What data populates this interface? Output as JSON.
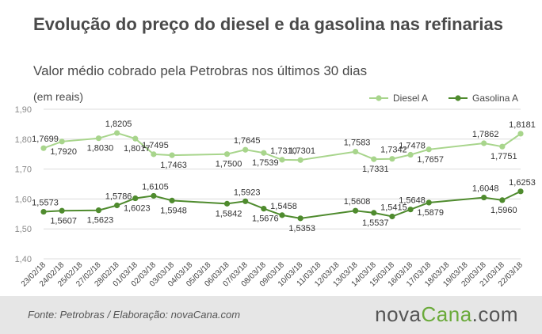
{
  "header": {
    "title": "Evolução do preço do diesel e da gasolina nas refinarias",
    "subtitle": "Valor médio cobrado pela Petrobras nos últimos 30 dias"
  },
  "footer": {
    "source": "Fonte:  Petrobras  / Elaboração:  novaCana.com",
    "brand_part1": "nova",
    "brand_part2": "Cana",
    "brand_part3": ".com"
  },
  "colors": {
    "diesel": "#a8d58c",
    "gasolina": "#4f8b2e",
    "grid": "#dcdcdc",
    "text": "#4a4a4a",
    "brand_accent": "#6aaa3a"
  },
  "chart_data": {
    "type": "line",
    "unit_label": "(em reais)",
    "ylim": [
      1.4,
      1.9
    ],
    "yticks": [
      "1,90",
      "1,80",
      "1,70",
      "1,60",
      "1,50",
      "1,40"
    ],
    "grid": true,
    "legend_position": "top-right",
    "x": [
      "23/02/18",
      "24/02/18",
      "25/02/18",
      "27/02/18",
      "28/02/18",
      "01/03/18",
      "02/03/18",
      "03/03/18",
      "04/03/18",
      "05/03/18",
      "06/03/18",
      "07/03/18",
      "08/03/18",
      "09/03/18",
      "10/03/18",
      "11/03/18",
      "12/03/18",
      "13/03/18",
      "14/03/18",
      "15/03/18",
      "16/03/18",
      "17/03/18",
      "18/03/18",
      "19/03/18",
      "20/03/18",
      "21/03/18",
      "22/03/18"
    ],
    "series": [
      {
        "name": "Diesel A",
        "points": [
          {
            "x": "23/02/18",
            "value": 1.7699,
            "label": "1,7699",
            "pos": "above"
          },
          {
            "x": "24/02/18",
            "value": 1.792,
            "label": "1,7920",
            "pos": "below"
          },
          {
            "x": "27/02/18",
            "value": 1.803,
            "label": "1,8030",
            "pos": "below"
          },
          {
            "x": "28/02/18",
            "value": 1.8205,
            "label": "1,8205",
            "pos": "above"
          },
          {
            "x": "01/03/18",
            "value": 1.8017,
            "label": "1,8017",
            "pos": "below"
          },
          {
            "x": "02/03/18",
            "value": 1.7495,
            "label": "1,7495",
            "pos": "above"
          },
          {
            "x": "03/03/18",
            "value": 1.7463,
            "label": "1,7463",
            "pos": "below"
          },
          {
            "x": "06/03/18",
            "value": 1.75,
            "label": "1,7500",
            "pos": "below"
          },
          {
            "x": "07/03/18",
            "value": 1.7645,
            "label": "1,7645",
            "pos": "above"
          },
          {
            "x": "08/03/18",
            "value": 1.7539,
            "label": "1,7539",
            "pos": "below"
          },
          {
            "x": "09/03/18",
            "value": 1.731,
            "label": "1,7310",
            "pos": "above"
          },
          {
            "x": "10/03/18",
            "value": 1.7301,
            "label": "1,7301",
            "pos": "above"
          },
          {
            "x": "13/03/18",
            "value": 1.7583,
            "label": "1,7583",
            "pos": "above"
          },
          {
            "x": "14/03/18",
            "value": 1.7331,
            "label": "1,7331",
            "pos": "below"
          },
          {
            "x": "15/03/18",
            "value": 1.7342,
            "label": "1,7342",
            "pos": "above"
          },
          {
            "x": "16/03/18",
            "value": 1.7478,
            "label": "1,7478",
            "pos": "above"
          },
          {
            "x": "17/03/18",
            "value": 1.7657,
            "label": "1,7657",
            "pos": "below"
          },
          {
            "x": "20/03/18",
            "value": 1.7862,
            "label": "1,7862",
            "pos": "above"
          },
          {
            "x": "21/03/18",
            "value": 1.7751,
            "label": "1,7751",
            "pos": "below"
          },
          {
            "x": "22/03/18",
            "value": 1.8181,
            "label": "1,8181",
            "pos": "above"
          }
        ]
      },
      {
        "name": "Gasolina A",
        "points": [
          {
            "x": "23/02/18",
            "value": 1.5573,
            "label": "1,5573",
            "pos": "above"
          },
          {
            "x": "24/02/18",
            "value": 1.5607,
            "label": "1,5607",
            "pos": "below"
          },
          {
            "x": "27/02/18",
            "value": 1.5623,
            "label": "1,5623",
            "pos": "below"
          },
          {
            "x": "28/02/18",
            "value": 1.5786,
            "label": "1,5786",
            "pos": "above"
          },
          {
            "x": "01/03/18",
            "value": 1.6023,
            "label": "1,6023",
            "pos": "below"
          },
          {
            "x": "02/03/18",
            "value": 1.6105,
            "label": "1,6105",
            "pos": "above"
          },
          {
            "x": "03/03/18",
            "value": 1.5948,
            "label": "1,5948",
            "pos": "below"
          },
          {
            "x": "06/03/18",
            "value": 1.5842,
            "label": "1,5842",
            "pos": "below"
          },
          {
            "x": "07/03/18",
            "value": 1.5923,
            "label": "1,5923",
            "pos": "above"
          },
          {
            "x": "08/03/18",
            "value": 1.5676,
            "label": "1,5676",
            "pos": "below"
          },
          {
            "x": "09/03/18",
            "value": 1.5458,
            "label": "1,5458",
            "pos": "above"
          },
          {
            "x": "10/03/18",
            "value": 1.5353,
            "label": "1,5353",
            "pos": "below"
          },
          {
            "x": "13/03/18",
            "value": 1.5608,
            "label": "1,5608",
            "pos": "above"
          },
          {
            "x": "14/03/18",
            "value": 1.5537,
            "label": "1,5537",
            "pos": "below"
          },
          {
            "x": "15/03/18",
            "value": 1.5415,
            "label": "1,5415",
            "pos": "above"
          },
          {
            "x": "16/03/18",
            "value": 1.5648,
            "label": "1,5648",
            "pos": "above"
          },
          {
            "x": "17/03/18",
            "value": 1.5879,
            "label": "1,5879",
            "pos": "below"
          },
          {
            "x": "20/03/18",
            "value": 1.6048,
            "label": "1,6048",
            "pos": "above"
          },
          {
            "x": "21/03/18",
            "value": 1.596,
            "label": "1,5960",
            "pos": "below"
          },
          {
            "x": "22/03/18",
            "value": 1.6253,
            "label": "1,6253",
            "pos": "above"
          }
        ]
      }
    ]
  }
}
